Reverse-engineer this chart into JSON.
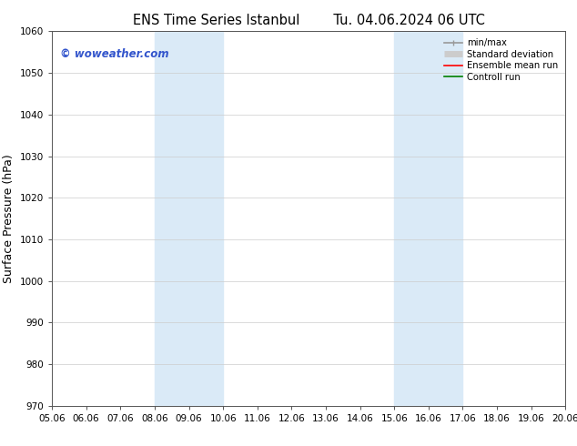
{
  "title_left": "ENS Time Series Istanbul",
  "title_right": "Tu. 04.06.2024 06 UTC",
  "ylabel": "Surface Pressure (hPa)",
  "ylim": [
    970,
    1060
  ],
  "yticks": [
    970,
    980,
    990,
    1000,
    1010,
    1020,
    1030,
    1040,
    1050,
    1060
  ],
  "x_start": 5.06,
  "x_end": 20.06,
  "xtick_labels": [
    "05.06",
    "06.06",
    "07.06",
    "08.06",
    "09.06",
    "10.06",
    "11.06",
    "12.06",
    "13.06",
    "14.06",
    "15.06",
    "16.06",
    "17.06",
    "18.06",
    "19.06",
    "20.06"
  ],
  "xtick_positions": [
    5.06,
    6.06,
    7.06,
    8.06,
    9.06,
    10.06,
    11.06,
    12.06,
    13.06,
    14.06,
    15.06,
    16.06,
    17.06,
    18.06,
    19.06,
    20.06
  ],
  "shaded_bands": [
    {
      "x_start": 8.06,
      "x_end": 10.06
    },
    {
      "x_start": 15.06,
      "x_end": 17.06
    }
  ],
  "shaded_color": "#daeaf7",
  "watermark": "© woweather.com",
  "watermark_color": "#3355cc",
  "legend_items": [
    {
      "label": "min/max",
      "color": "#999999",
      "lw": 1.2
    },
    {
      "label": "Standard deviation",
      "color": "#cccccc",
      "lw": 5
    },
    {
      "label": "Ensemble mean run",
      "color": "#ff0000",
      "lw": 1.2
    },
    {
      "label": "Controll run",
      "color": "#008000",
      "lw": 1.2
    }
  ],
  "bg_color": "#ffffff",
  "grid_color": "#cccccc",
  "tick_label_fontsize": 7.5,
  "axis_label_fontsize": 9,
  "title_fontsize": 10.5
}
